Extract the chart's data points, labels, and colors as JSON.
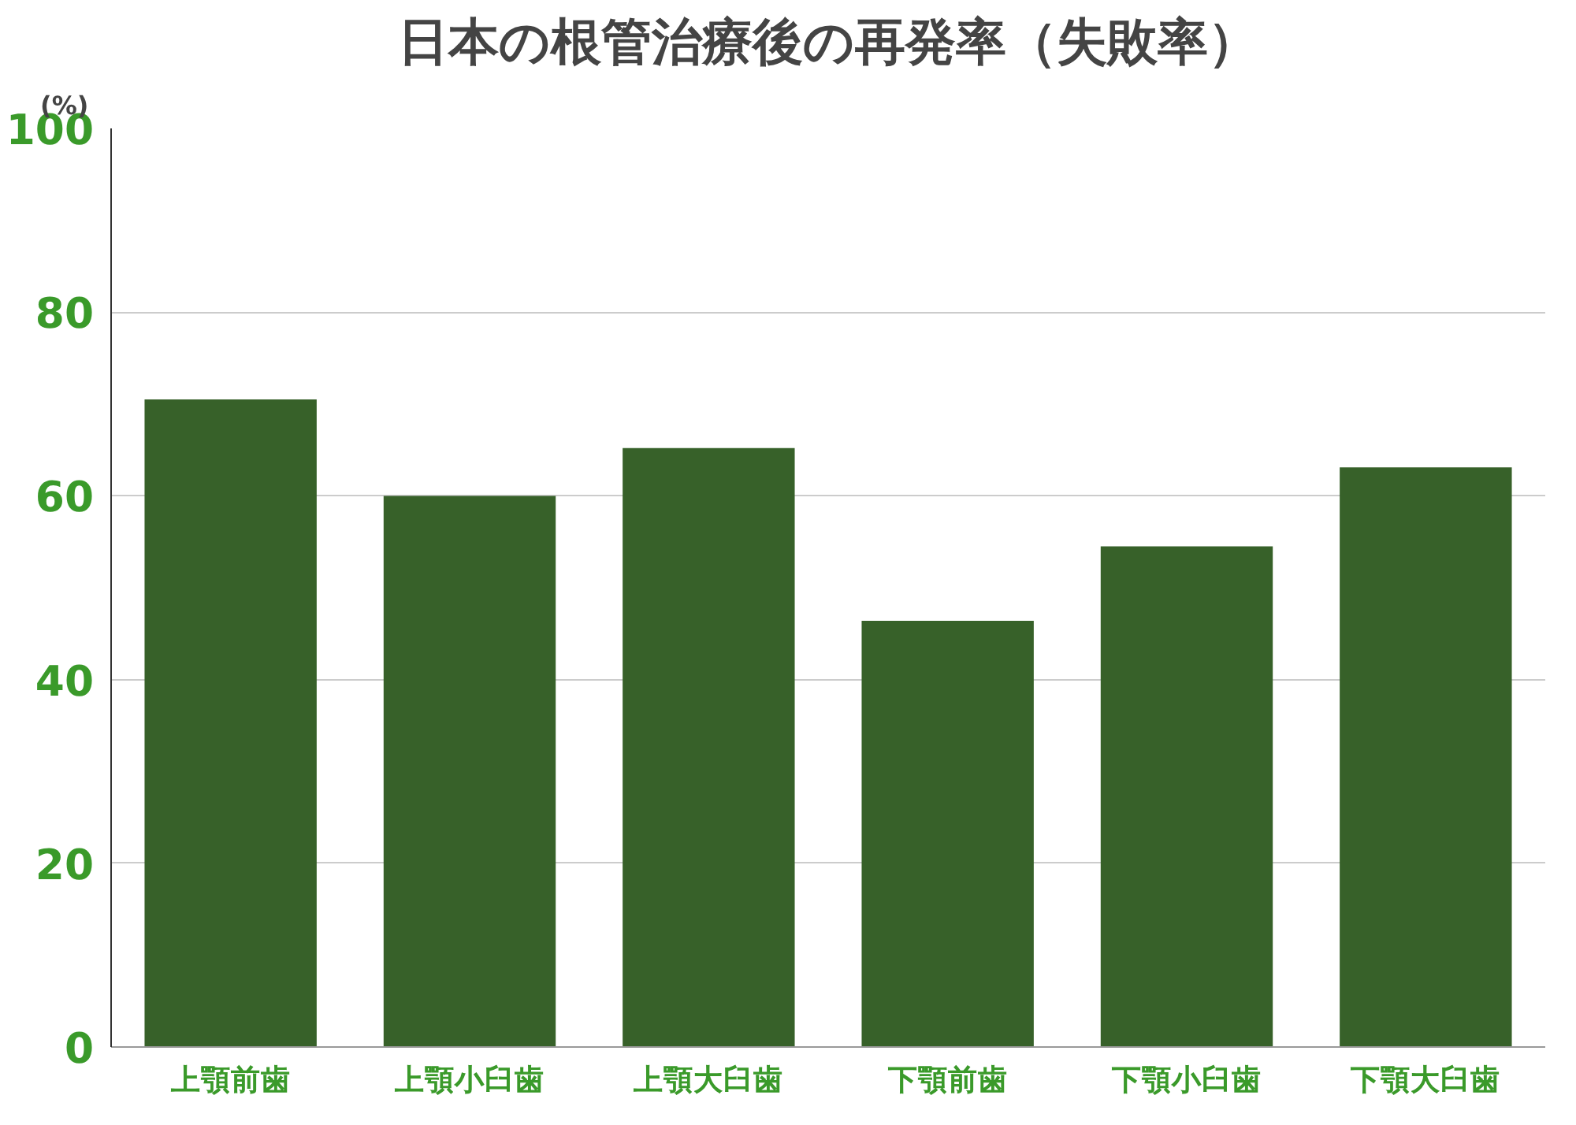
{
  "chart_data": {
    "type": "bar",
    "title": "日本の根管治療後の再発率（失敗率）",
    "ylabel": "(%)",
    "categories": [
      "上顎前歯",
      "上顎小臼歯",
      "上顎大臼歯",
      "下顎前歯",
      "下顎小臼歯",
      "下顎大臼歯"
    ],
    "values": [
      70.5,
      60.0,
      65.2,
      46.4,
      54.5,
      63.1
    ],
    "color": "#376129",
    "ylim": [
      0,
      100
    ],
    "yticks": [
      0,
      20,
      40,
      60,
      80,
      100
    ],
    "grid": "y"
  }
}
